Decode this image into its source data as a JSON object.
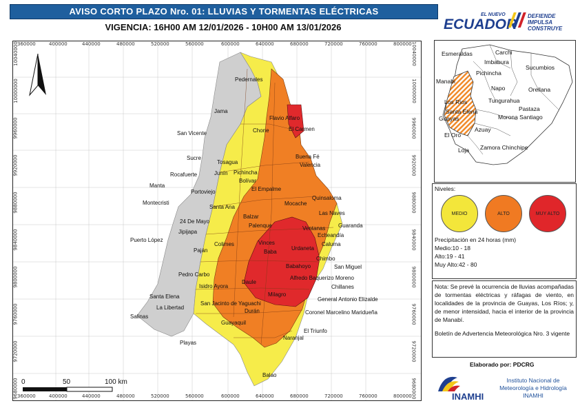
{
  "title": "AVISO CORTO PLAZO Nro. 01: LLUVIAS Y TORMENTAS ELÉCTRICAS",
  "validity": "VIGENCIA: 16H00 AM 12/01/2026 - 10H00 AM 13/01/2026",
  "logo": {
    "el_nuevo": "EL NUEVO",
    "ecuador": "ECUADOR",
    "slogan1": "DEFIENDE",
    "slogan2": "IMPULSA",
    "slogan3": "CONSTRUYE"
  },
  "map": {
    "x_ticks": [
      "360000",
      "400000",
      "440000",
      "480000",
      "520000",
      "560000",
      "600000",
      "640000",
      "680000",
      "720000",
      "760000",
      "800000"
    ],
    "y_ticks": [
      "10040000",
      "10000000",
      "9960000",
      "9920000",
      "9880000",
      "9840000",
      "9800000",
      "9760000",
      "9720000",
      "9680000"
    ],
    "scale_bar": {
      "labels": [
        "0",
        "50",
        "100 km"
      ]
    },
    "places": [
      {
        "name": "Pedernales"
      },
      {
        "name": "Jama"
      },
      {
        "name": "Flavio Alfaro"
      },
      {
        "name": "El Carmen"
      },
      {
        "name": "San Vicente"
      },
      {
        "name": "Chone"
      },
      {
        "name": "Sucre"
      },
      {
        "name": "Tosagua"
      },
      {
        "name": "Buena Fé"
      },
      {
        "name": "Valencia"
      },
      {
        "name": "Rocafuerte"
      },
      {
        "name": "Junín"
      },
      {
        "name": "Pichincha"
      },
      {
        "name": "Bolívar"
      },
      {
        "name": "Manta"
      },
      {
        "name": "Portoviejo"
      },
      {
        "name": "El Empalme"
      },
      {
        "name": "Quinsaloma"
      },
      {
        "name": "Montecristi"
      },
      {
        "name": "Santa Ana"
      },
      {
        "name": "Mocache"
      },
      {
        "name": "Las Naves"
      },
      {
        "name": "24 De Mayo"
      },
      {
        "name": "Balzar"
      },
      {
        "name": "Palenque"
      },
      {
        "name": "Ventanas"
      },
      {
        "name": "Guaranda"
      },
      {
        "name": "Jipijapa"
      },
      {
        "name": "Echeandía"
      },
      {
        "name": "Puerto López"
      },
      {
        "name": "Colimes"
      },
      {
        "name": "Vinces"
      },
      {
        "name": "Urdaneta"
      },
      {
        "name": "Caluma"
      },
      {
        "name": "Paján"
      },
      {
        "name": "Baba"
      },
      {
        "name": "Chimbo"
      },
      {
        "name": "Babahoyo"
      },
      {
        "name": "San Miguel"
      },
      {
        "name": "Pedro Carbo"
      },
      {
        "name": "Alfredo Baquerizo Moreno"
      },
      {
        "name": "Isidro Ayora"
      },
      {
        "name": "Daule"
      },
      {
        "name": "Chillanes"
      },
      {
        "name": "Santa Elena"
      },
      {
        "name": "Milagro"
      },
      {
        "name": "General Antonio Elizalde"
      },
      {
        "name": "San Jacinto de Yaguachi"
      },
      {
        "name": "La Libertad"
      },
      {
        "name": "Durán"
      },
      {
        "name": "Coronel Marcelino Maridueña"
      },
      {
        "name": "Salinas"
      },
      {
        "name": "Guayaquil"
      },
      {
        "name": "El Triunfo"
      },
      {
        "name": "Naranjal"
      },
      {
        "name": "Playas"
      },
      {
        "name": "Balao"
      }
    ]
  },
  "inset": {
    "places": [
      {
        "name": "Esmeraldas"
      },
      {
        "name": "Carchi"
      },
      {
        "name": "Imbabura"
      },
      {
        "name": "Pichincha"
      },
      {
        "name": "Sucumbios"
      },
      {
        "name": "Manabi"
      },
      {
        "name": "Napo"
      },
      {
        "name": "Orellana"
      },
      {
        "name": "Los Rios"
      },
      {
        "name": "Tungurahua"
      },
      {
        "name": "Santa Elena"
      },
      {
        "name": "Pastaza"
      },
      {
        "name": "Morona Santiago"
      },
      {
        "name": "Guayas"
      },
      {
        "name": "Azuay"
      },
      {
        "name": "El Oro"
      },
      {
        "name": "Loja"
      },
      {
        "name": "Zamora Chinchipe"
      }
    ]
  },
  "legend": {
    "title": "Niveles:",
    "levels": [
      {
        "label": "MEDIO",
        "color": "#f3e63a"
      },
      {
        "label": "ALTO",
        "color": "#f07a22"
      },
      {
        "label": "MUY ALTO",
        "color": "#e0262a"
      }
    ],
    "precip_title": "Precipitación en 24 horas (mm)",
    "ranges": [
      "Medio:10 - 18",
      "Alto:19 - 41",
      "Muy Alto:42 - 80"
    ]
  },
  "note": {
    "text": "Nota: Se prevé la ocurrencia de lluvias acompañadas de tormentas eléctricas y ráfagas de viento, en localidades de la provincia de Guayas, Los Ríos; y, de menor intensidad, hacia el interior de la provincia de Manabí.",
    "bulletin": "Boletín de Advertencia Meteorológica Nro. 3 vigente"
  },
  "footer": {
    "elaborado": "Elaborado por: PDCRG",
    "inamhi": "INAMHI",
    "institute": "Instituto Nacional de Meteorología e Hidrología INAMHI"
  },
  "colors": {
    "medio": "#f6ec4a",
    "alto": "#f07f24",
    "muy_alto": "#e0292c",
    "gray": "#cfcfcf",
    "title_bg": "#1f5f9e"
  }
}
